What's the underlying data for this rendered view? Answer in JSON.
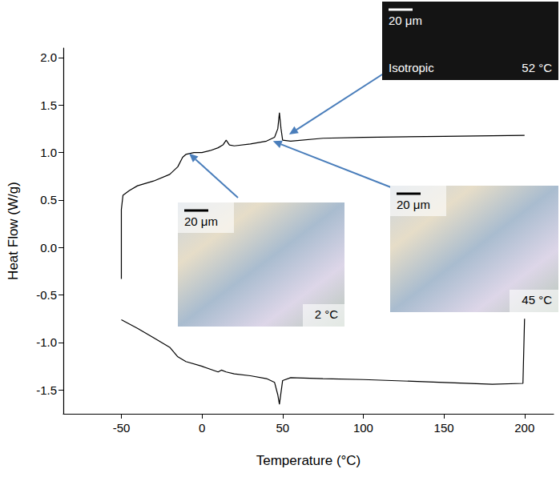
{
  "chart_data": {
    "type": "line",
    "x_label": "Temperature (°C)",
    "y_label": "Heat Flow (W/g)",
    "xlim": [
      -86,
      218
    ],
    "xticks": [
      -50,
      0,
      50,
      100,
      150,
      200
    ],
    "ylim": [
      -1.75,
      2.1
    ],
    "yticks": [
      -1.5,
      {
        "value": -1.0,
        "label": "-1.0"
      },
      -0.5,
      {
        "value": 0.0,
        "label": "0.0"
      },
      0.5,
      {
        "value": 1.0,
        "label": "1.0"
      },
      1.5,
      {
        "value": 2.0,
        "label": "2.0"
      }
    ],
    "grid": false,
    "series": [
      {
        "color": "#000000",
        "x": [
          -50,
          -50,
          -49,
          -45,
          -40,
          -30,
          -20,
          -15,
          -12,
          -10,
          -5,
          0,
          5,
          10,
          13,
          15,
          17,
          20,
          30,
          40,
          45,
          47,
          48,
          49,
          50,
          55,
          75,
          100,
          150,
          200
        ],
        "values": [
          -0.33,
          0.4,
          0.55,
          0.6,
          0.65,
          0.7,
          0.77,
          0.85,
          0.95,
          0.98,
          1.0,
          1.0,
          1.02,
          1.05,
          1.08,
          1.13,
          1.08,
          1.07,
          1.09,
          1.12,
          1.16,
          1.25,
          1.42,
          1.25,
          1.13,
          1.12,
          1.15,
          1.16,
          1.17,
          1.18
        ]
      },
      {
        "color": "#000000",
        "x": [
          200,
          199,
          180,
          150,
          100,
          75,
          55,
          50,
          48,
          47,
          45,
          40,
          30,
          20,
          15,
          12,
          10,
          0,
          -10,
          -15,
          -20,
          -30,
          -40,
          -50
        ],
        "values": [
          -0.75,
          -1.43,
          -1.44,
          -1.42,
          -1.39,
          -1.38,
          -1.37,
          -1.4,
          -1.65,
          -1.55,
          -1.42,
          -1.38,
          -1.35,
          -1.33,
          -1.31,
          -1.29,
          -1.31,
          -1.25,
          -1.2,
          -1.15,
          -1.05,
          -0.95,
          -0.85,
          -0.76
        ]
      }
    ],
    "annotations": [
      {
        "scale_bar": "20 μm",
        "caption": "Isotropic",
        "temperature": "52 °C",
        "arrow_to": [
          54,
          1.19
        ]
      },
      {
        "scale_bar": "20 μm",
        "temperature": "2 °C",
        "arrow_to": [
          -8,
          0.99
        ]
      },
      {
        "scale_bar": "20 μm",
        "temperature": "45 °C",
        "arrow_to": [
          44,
          1.12
        ]
      }
    ]
  }
}
